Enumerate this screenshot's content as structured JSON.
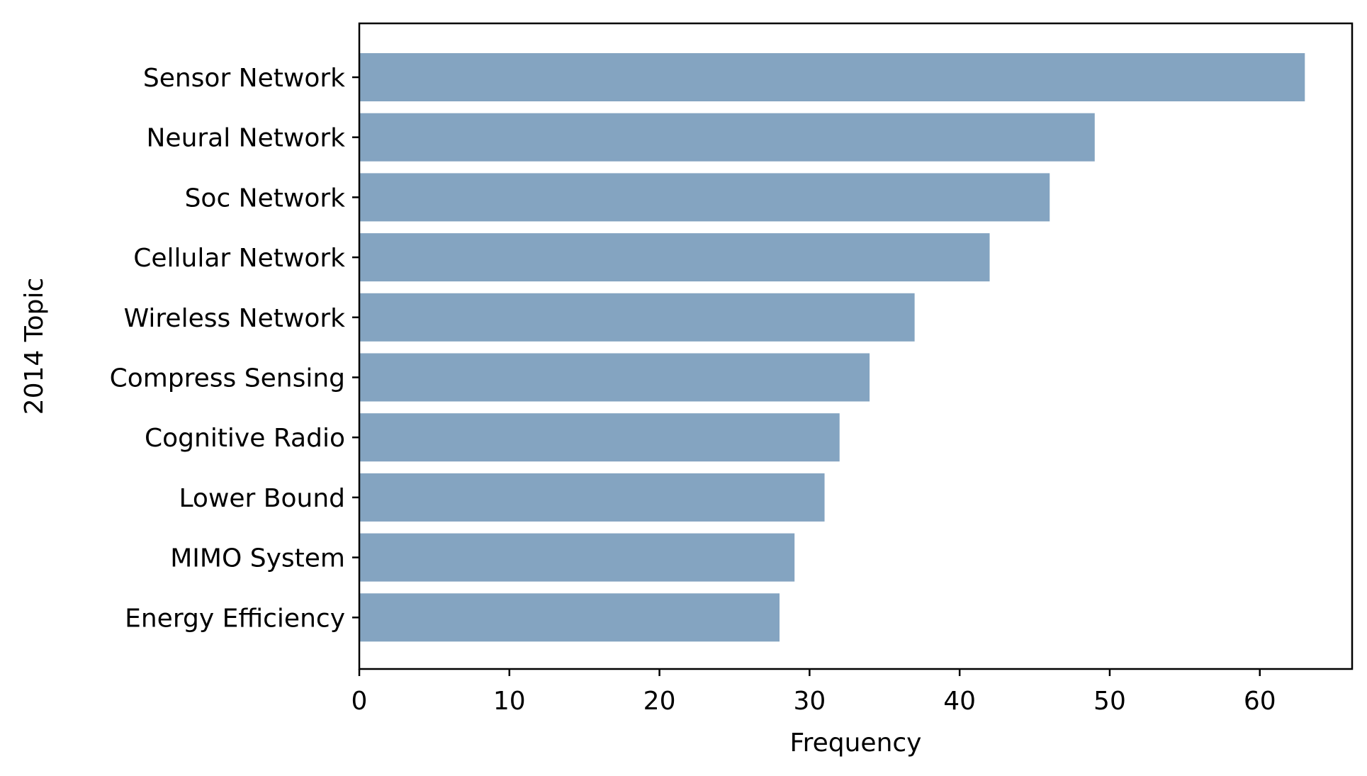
{
  "chart_data": {
    "type": "bar",
    "orientation": "horizontal",
    "categories": [
      "Sensor Network",
      "Neural Network",
      "Soc Network",
      "Cellular Network",
      "Wireless Network",
      "Compress Sensing",
      "Cognitive Radio",
      "Lower Bound",
      "MIMO System",
      "Energy Efficiency"
    ],
    "values": [
      63,
      49,
      46,
      42,
      37,
      34,
      32,
      31,
      29,
      28
    ],
    "title": "",
    "xlabel": "Frequency",
    "ylabel": "2014 Topic",
    "xlim": [
      0,
      66.15
    ],
    "xticks": [
      0,
      10,
      20,
      30,
      40,
      50,
      60
    ],
    "grid": false,
    "bar_color": "#84a4c1"
  }
}
